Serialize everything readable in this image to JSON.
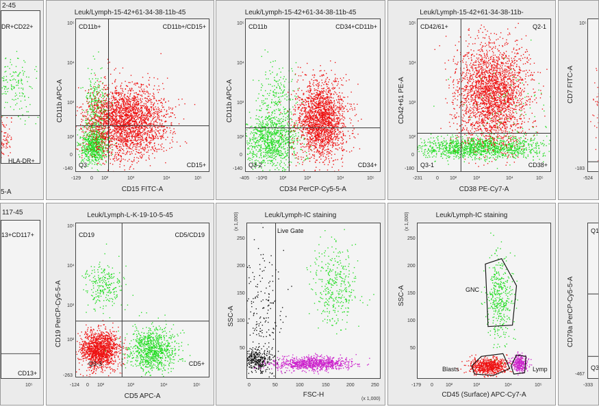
{
  "colors": {
    "red": "#e11",
    "green": "#2d2",
    "black": "#111",
    "magenta": "#c2c"
  },
  "panels": {
    "p0": {
      "title": "2-45",
      "quadrants": {
        "tr": "DR+CD22+",
        "br": "HLA-DR+"
      },
      "xlabel": "5-A"
    },
    "p1": {
      "title": "Leuk/Lymph-15-42+61-34-38-11b-45",
      "xlabel": "CD15 FITC-A",
      "ylabel": "CD11b APC-A",
      "quadrants": {
        "tl": "CD11b+",
        "tr": "CD11b+/CD15+",
        "bl": "Q3",
        "br": "CD15+"
      },
      "xticks": [
        "-129",
        "0",
        "10²",
        "10³",
        "10⁴",
        "10⁵"
      ],
      "yticks": [
        "10⁵",
        "10⁴",
        "10³",
        "10²",
        "0",
        "-140"
      ]
    },
    "p2": {
      "title": "Leuk/Lymph-15-42+61-34-38-11b-45",
      "xlabel": "CD34 PerCP-Cy5-5-A",
      "ylabel": "CD11b APC-A",
      "quadrants": {
        "tl": "CD11b",
        "tr": "CD34+CD11b+",
        "bl": "Q3-2",
        "br": "CD34+"
      },
      "xticks": [
        "-405",
        "-10²0",
        "10²",
        "10³",
        "10⁴",
        "10⁵"
      ],
      "yticks": [
        "10⁵",
        "10⁴",
        "10³",
        "10²",
        "0",
        "-140"
      ]
    },
    "p3": {
      "title": "Leuk/Lymph-15-42+61-34-38-11b-",
      "xlabel": "CD38 PE-Cy7-A",
      "ylabel": "CD42+61 PE-A",
      "quadrants": {
        "tl": "CD42/61+",
        "tr": "Q2-1",
        "bl": "Q3-1",
        "br": "CD38+"
      },
      "xticks": [
        "-231",
        "0",
        "10²",
        "10³",
        "10⁴",
        "10⁵"
      ],
      "yticks": [
        "10⁵",
        "10⁴",
        "10³",
        "10²",
        "0",
        "-180"
      ]
    },
    "p4": {
      "xlabel": "",
      "ylabel": "CD7 FITC-A",
      "xticks": [
        "-524"
      ],
      "yticks": [
        "10⁵",
        "-183"
      ]
    },
    "p5": {
      "title": "117-45",
      "quadrants": {
        "tr": "13+CD117+",
        "br": "CD13+"
      },
      "xticks": [
        "10⁵"
      ]
    },
    "p6": {
      "title": "Leuk/Lymph-L-K-19-10-5-45",
      "xlabel": "CD5 APC-A",
      "ylabel": "CD19 PerCP-Cy5-5-A",
      "quadrants": {
        "tl": "CD19",
        "tr": "CD5/CD19",
        "bl": "Q3-3",
        "br": "CD5+"
      },
      "xticks": [
        "-124",
        "0",
        "10²",
        "10³",
        "10⁴",
        "10⁵"
      ],
      "yticks": [
        "10⁵",
        "10⁴",
        "10³",
        "10²",
        "-263"
      ]
    },
    "p7": {
      "title": "Leuk/Lymph-IC staining",
      "xlabel": "FSC-H",
      "ylabel": "SSC-A",
      "gate": "Live Gate",
      "xunit": "(x 1,000)",
      "yunit": "(x 1,000)",
      "xticks": [
        "0",
        "50",
        "100",
        "150",
        "200",
        "250"
      ],
      "yticks": [
        "250",
        "200",
        "150",
        "100",
        "50"
      ]
    },
    "p8": {
      "title": "Leuk/Lymph-IC staining",
      "xlabel": "CD45 (Surface) APC-Cy7-A",
      "ylabel": "SSC-A",
      "yunit": "(x 1,000)",
      "gates": {
        "gnc": "GNC",
        "blasts": "Blasts",
        "lymp": "Lymp"
      },
      "xticks": [
        "-179",
        "0",
        "10²",
        "10³",
        "10⁴",
        "10⁵"
      ],
      "yticks": [
        "250",
        "200",
        "150",
        "100",
        "50"
      ]
    },
    "p9": {
      "ylabel": "CD79a PerCP-Cy5-5-A",
      "quadrants": {
        "tl": "Q1",
        "bl": "Q3"
      },
      "xticks": [
        "-333"
      ],
      "yticks": [
        "-467"
      ]
    }
  },
  "chart_data": [
    {
      "type": "scatter",
      "title": "Leuk/Lymph-15-42+61-34-38-11b-45",
      "xlabel": "CD15 FITC-A",
      "ylabel": "CD11b APC-A",
      "xscale": "log",
      "yscale": "log",
      "quadrant_labels": [
        "CD11b+",
        "CD11b+/CD15+",
        "Q3",
        "CD15+"
      ],
      "clusters": [
        {
          "color": "red",
          "x": [
            1.6,
            2.6
          ],
          "y": [
            1.2,
            2.6
          ]
        },
        {
          "color": "green",
          "x": [
            0.0,
            0.8
          ],
          "y": [
            0.0,
            1.4
          ]
        },
        {
          "color": "green",
          "x": [
            0.2,
            0.8
          ],
          "y": [
            1.3,
            2.6
          ]
        }
      ]
    },
    {
      "type": "scatter",
      "title": "Leuk/Lymph-15-42+61-34-38-11b-45",
      "xlabel": "CD34 PerCP-Cy5-5-A",
      "ylabel": "CD11b APC-A",
      "xscale": "log",
      "yscale": "log",
      "quadrant_labels": [
        "CD11b",
        "CD34+CD11b+",
        "Q3-2",
        "CD34+"
      ],
      "clusters": [
        {
          "color": "red",
          "x": [
            2.6,
            3.6
          ],
          "y": [
            0.6,
            2.0
          ]
        },
        {
          "color": "green",
          "x": [
            0.5,
            1.8
          ],
          "y": [
            -0.2,
            1.8
          ]
        }
      ]
    },
    {
      "type": "scatter",
      "title": "Leuk/Lymph-15-42+61-34-38-11b-",
      "xlabel": "CD38 PE-Cy7-A",
      "ylabel": "CD42+61 PE-A",
      "xscale": "log",
      "yscale": "log",
      "quadrant_labels": [
        "CD42/61+",
        "Q2-1",
        "Q3-1",
        "CD38+"
      ],
      "clusters": [
        {
          "color": "red",
          "x": [
            1.6,
            3.4
          ],
          "y": [
            1.0,
            3.4
          ]
        },
        {
          "color": "green",
          "x": [
            0.0,
            3.2
          ],
          "y": [
            0.3,
            1.0
          ]
        }
      ]
    },
    {
      "type": "scatter",
      "title": "Leuk/Lymph-L-K-19-10-5-45",
      "xlabel": "CD5 APC-A",
      "ylabel": "CD19 PerCP-Cy5-5-A",
      "xscale": "log",
      "yscale": "log",
      "quadrant_labels": [
        "CD19",
        "CD5/CD19",
        "Q3-3",
        "CD5+"
      ],
      "clusters": [
        {
          "color": "red",
          "x": [
            -0.3,
            1.2
          ],
          "y": [
            -0.2,
            1.4
          ]
        },
        {
          "color": "green",
          "x": [
            1.8,
            3.2
          ],
          "y": [
            -0.2,
            1.6
          ]
        },
        {
          "color": "green",
          "x": [
            0.0,
            1.2
          ],
          "y": [
            2.2,
            3.2
          ]
        }
      ]
    },
    {
      "type": "scatter",
      "title": "Leuk/Lymph-IC staining",
      "xlabel": "FSC-H",
      "ylabel": "SSC-A",
      "xlim": [
        0,
        262
      ],
      "ylim": [
        0,
        262
      ],
      "gate_x": 62,
      "clusters": [
        {
          "color": "black",
          "x": [
            0,
            62
          ],
          "y": [
            0,
            80
          ]
        },
        {
          "color": "magenta",
          "x": [
            70,
            160
          ],
          "y": [
            5,
            25
          ]
        },
        {
          "color": "green",
          "x": [
            110,
            180
          ],
          "y": [
            110,
            190
          ]
        }
      ]
    },
    {
      "type": "scatter",
      "title": "Leuk/Lymph-IC staining",
      "xlabel": "CD45 (Surface) APC-Cy7-A",
      "ylabel": "SSC-A",
      "ylim": [
        0,
        262
      ],
      "gates": [
        "GNC",
        "Blasts",
        "Lymp"
      ],
      "clusters": [
        {
          "color": "red",
          "x": [
            2.0,
            3.1
          ],
          "y": [
            5,
            28
          ]
        },
        {
          "color": "magenta",
          "x": [
            3.5,
            4.0
          ],
          "y": [
            8,
            30
          ]
        },
        {
          "color": "green",
          "x": [
            2.5,
            3.5
          ],
          "y": [
            110,
            210
          ]
        }
      ]
    }
  ]
}
